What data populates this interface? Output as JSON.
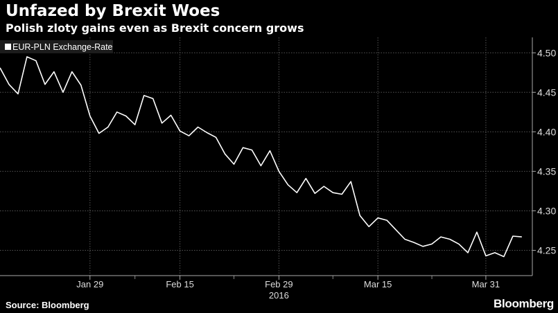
{
  "header": {
    "title": "Unfazed by Brexit Woes",
    "subtitle": "Polish zloty gains even as Brexit concern grows"
  },
  "footer": {
    "source": "Source: Bloomberg",
    "logo": "Bloomberg"
  },
  "colors": {
    "background": "#000000",
    "line": "#ffffff",
    "grid": "#555555",
    "legend_bg": "#1c1c1c"
  },
  "chart_data": {
    "type": "line",
    "title": "Unfazed by Brexit Woes",
    "subtitle": "Polish zloty gains even as Brexit concern grows",
    "xlabel": "2016",
    "ylabel": "",
    "legend": {
      "entries": [
        "EUR-PLN Exchange-Rate"
      ],
      "placement": "top-left"
    },
    "ylim": [
      4.218,
      4.516
    ],
    "yticks": [
      "4.25",
      "4.30",
      "4.35",
      "4.40",
      "4.45",
      "4.50"
    ],
    "ytick_values": [
      4.25,
      4.3,
      4.35,
      4.4,
      4.45,
      4.5
    ],
    "xticks": [
      {
        "index": 10,
        "label": "Jan 29"
      },
      {
        "index": 20,
        "label": "Feb 15"
      },
      {
        "index": 31,
        "label": "Feb 29"
      },
      {
        "index": 42,
        "label": "Mar 15"
      },
      {
        "index": 54,
        "label": "Mar 31"
      }
    ],
    "minor_xticks": [
      15,
      26,
      37,
      48
    ],
    "year_label": "2016",
    "grid": true,
    "series": [
      {
        "name": "EUR-PLN Exchange-Rate",
        "values": [
          4.481,
          4.46,
          4.448,
          4.495,
          4.49,
          4.46,
          4.476,
          4.45,
          4.476,
          4.459,
          4.42,
          4.398,
          4.406,
          4.425,
          4.42,
          4.409,
          4.446,
          4.442,
          4.411,
          4.421,
          4.401,
          4.395,
          4.406,
          4.399,
          4.393,
          4.372,
          4.359,
          4.38,
          4.377,
          4.357,
          4.376,
          4.35,
          4.333,
          4.323,
          4.341,
          4.322,
          4.331,
          4.323,
          4.321,
          4.337,
          4.294,
          4.28,
          4.291,
          4.288,
          4.276,
          4.264,
          4.26,
          4.255,
          4.258,
          4.267,
          4.264,
          4.258,
          4.247,
          4.273,
          4.243,
          4.247,
          4.242,
          4.268,
          4.267
        ]
      }
    ]
  }
}
